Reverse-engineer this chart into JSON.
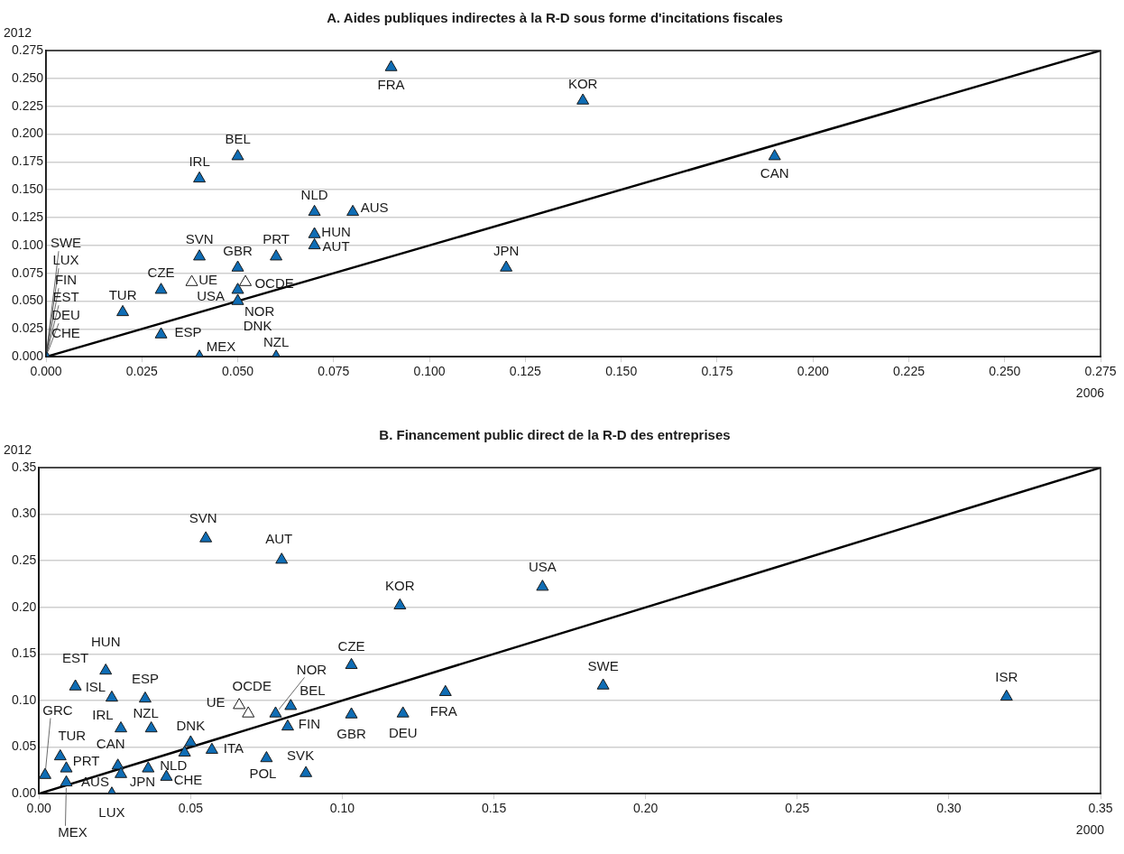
{
  "chart_data": [
    {
      "type": "scatter",
      "title": "A. Aides publiques indirectes à la R-D sous forme d'incitations fiscales",
      "xlabel": "2006",
      "ylabel": "2012",
      "marker": "triangle",
      "grid": "y",
      "xlim": [
        0,
        0.275
      ],
      "ylim": [
        0,
        0.275
      ],
      "xticks": [
        {
          "value": 0,
          "label": "0.000"
        },
        {
          "value": 0.025,
          "label": "0.025"
        },
        {
          "value": 0.05,
          "label": "0.050"
        },
        {
          "value": 0.075,
          "label": "0.075"
        },
        {
          "value": 0.1,
          "label": "0.100"
        },
        {
          "value": 0.125,
          "label": "0.125"
        },
        {
          "value": 0.15,
          "label": "0.150"
        },
        {
          "value": 0.175,
          "label": "0.175"
        },
        {
          "value": 0.2,
          "label": "0.200"
        },
        {
          "value": 0.225,
          "label": "0.225"
        },
        {
          "value": 0.25,
          "label": "0.250"
        },
        {
          "value": 0.275,
          "label": "0.275"
        }
      ],
      "yticks": [
        {
          "value": 0,
          "label": "0.000"
        },
        {
          "value": 0.025,
          "label": "0.025"
        },
        {
          "value": 0.05,
          "label": "0.050"
        },
        {
          "value": 0.075,
          "label": "0.075"
        },
        {
          "value": 0.1,
          "label": "0.100"
        },
        {
          "value": 0.125,
          "label": "0.125"
        },
        {
          "value": 0.15,
          "label": "0.150"
        },
        {
          "value": 0.175,
          "label": "0.175"
        },
        {
          "value": 0.2,
          "label": "0.200"
        },
        {
          "value": 0.225,
          "label": "0.225"
        },
        {
          "value": 0.25,
          "label": "0.250"
        },
        {
          "value": 0.275,
          "label": "0.275"
        }
      ],
      "series": [
        {
          "type": "line",
          "marker": "none",
          "color": "#000000",
          "x": [
            0,
            0.275
          ],
          "values": [
            0,
            0.275
          ]
        },
        {
          "color": "#0f6db5",
          "x": [
            0,
            0.02,
            0.03,
            0.03,
            0.04,
            0.04,
            0.04,
            0.05,
            0.05,
            0.05,
            0.05,
            0.06,
            0.06,
            0.07,
            0.07,
            0.07,
            0.08,
            0.09,
            0.12,
            0.14,
            0.19
          ],
          "values": [
            0,
            0.04,
            0.06,
            0.02,
            0.16,
            0.09,
            0,
            0.18,
            0.08,
            0.06,
            0.05,
            0.09,
            0,
            0.13,
            0.11,
            0.1,
            0.13,
            0.26,
            0.08,
            0.23,
            0.18
          ]
        },
        {
          "color": "#ffffff",
          "x": [
            0.038,
            0.052
          ],
          "values": [
            0.067,
            0.067
          ]
        }
      ],
      "annotations": [
        {
          "text": "SWE",
          "x": 0,
          "y": 0
        },
        {
          "text": "LUX",
          "x": 0,
          "y": 0
        },
        {
          "text": "FIN",
          "x": 0,
          "y": 0
        },
        {
          "text": "EST",
          "x": 0,
          "y": 0
        },
        {
          "text": "DEU",
          "x": 0,
          "y": 0
        },
        {
          "text": "CHE",
          "x": 0,
          "y": 0
        },
        {
          "text": "TUR",
          "x": 0.02,
          "y": 0.04
        },
        {
          "text": "CZE",
          "x": 0.03,
          "y": 0.06
        },
        {
          "text": "ESP",
          "x": 0.03,
          "y": 0.02
        },
        {
          "text": "IRL",
          "x": 0.04,
          "y": 0.16
        },
        {
          "text": "SVN",
          "x": 0.04,
          "y": 0.09
        },
        {
          "text": "MEX",
          "x": 0.04,
          "y": 0
        },
        {
          "text": "BEL",
          "x": 0.05,
          "y": 0.18
        },
        {
          "text": "GBR",
          "x": 0.05,
          "y": 0.08
        },
        {
          "text": "USA",
          "x": 0.05,
          "y": 0.06
        },
        {
          "text": "NOR",
          "x": 0.05,
          "y": 0.05
        },
        {
          "text": "DNK",
          "x": 0.05,
          "y": 0.05
        },
        {
          "text": "PRT",
          "x": 0.06,
          "y": 0.09
        },
        {
          "text": "NZL",
          "x": 0.06,
          "y": 0
        },
        {
          "text": "NLD",
          "x": 0.07,
          "y": 0.13
        },
        {
          "text": "HUN",
          "x": 0.07,
          "y": 0.11
        },
        {
          "text": "AUT",
          "x": 0.07,
          "y": 0.1
        },
        {
          "text": "AUS",
          "x": 0.08,
          "y": 0.13
        },
        {
          "text": "FRA",
          "x": 0.09,
          "y": 0.26
        },
        {
          "text": "JPN",
          "x": 0.12,
          "y": 0.08
        },
        {
          "text": "KOR",
          "x": 0.14,
          "y": 0.23
        },
        {
          "text": "CAN",
          "x": 0.19,
          "y": 0.18
        },
        {
          "text": "UE",
          "x": 0.038,
          "y": 0.067
        },
        {
          "text": "OCDE",
          "x": 0.052,
          "y": 0.067
        }
      ]
    },
    {
      "type": "scatter",
      "title": "B. Financement public direct de la R-D des entreprises",
      "xlabel": "2000",
      "ylabel": "2012",
      "marker": "triangle",
      "grid": "y",
      "xlim": [
        0,
        0.35
      ],
      "ylim": [
        0,
        0.35
      ],
      "xticks": [
        {
          "value": 0,
          "label": "0.00"
        },
        {
          "value": 0.05,
          "label": "0.05"
        },
        {
          "value": 0.1,
          "label": "0.10"
        },
        {
          "value": 0.15,
          "label": "0.15"
        },
        {
          "value": 0.2,
          "label": "0.20"
        },
        {
          "value": 0.25,
          "label": "0.25"
        },
        {
          "value": 0.3,
          "label": "0.30"
        },
        {
          "value": 0.35,
          "label": "0.35"
        }
      ],
      "yticks": [
        {
          "value": 0,
          "label": "0.00"
        },
        {
          "value": 0.05,
          "label": "0.05"
        },
        {
          "value": 0.1,
          "label": "0.10"
        },
        {
          "value": 0.15,
          "label": "0.15"
        },
        {
          "value": 0.2,
          "label": "0.20"
        },
        {
          "value": 0.25,
          "label": "0.25"
        },
        {
          "value": 0.3,
          "label": "0.30"
        },
        {
          "value": 0.35,
          "label": "0.35"
        }
      ],
      "series": [
        {
          "type": "line",
          "marker": "none",
          "color": "#000000",
          "x": [
            0,
            0.35
          ],
          "values": [
            0,
            0.35
          ]
        },
        {
          "color": "#0f6db5",
          "x": [
            0.002,
            0.007,
            0.009,
            0.009,
            0.012,
            0.022,
            0.024,
            0.027,
            0.026,
            0.027,
            0.024,
            0.035,
            0.037,
            0.036,
            0.042,
            0.05,
            0.048,
            0.057,
            0.075,
            0.088,
            0.078,
            0.083,
            0.082,
            0.103,
            0.103,
            0.12,
            0.134,
            0.119,
            0.166,
            0.186,
            0.319,
            0.055,
            0.08
          ],
          "values": [
            0.02,
            0.04,
            0.027,
            0.012,
            0.115,
            0.132,
            0.103,
            0.07,
            0.03,
            0.021,
            0,
            0.102,
            0.07,
            0.027,
            0.018,
            0.055,
            0.044,
            0.047,
            0.038,
            0.022,
            0.086,
            0.094,
            0.072,
            0.138,
            0.085,
            0.086,
            0.109,
            0.202,
            0.222,
            0.116,
            0.104,
            0.274,
            0.251
          ]
        },
        {
          "color": "#ffffff",
          "x": [
            0.066,
            0.069
          ],
          "values": [
            0.095,
            0.086
          ]
        }
      ],
      "annotations": [
        {
          "text": "GRC",
          "x": 0.002,
          "y": 0.02
        },
        {
          "text": "TUR",
          "x": 0.007,
          "y": 0.04
        },
        {
          "text": "PRT",
          "x": 0.009,
          "y": 0.027
        },
        {
          "text": "AUS",
          "x": 0.009,
          "y": 0.012
        },
        {
          "text": "MEX",
          "x": 0.009,
          "y": 0.012
        },
        {
          "text": "EST",
          "x": 0.012,
          "y": 0.115
        },
        {
          "text": "HUN",
          "x": 0.022,
          "y": 0.132
        },
        {
          "text": "ISL",
          "x": 0.024,
          "y": 0.103
        },
        {
          "text": "IRL",
          "x": 0.027,
          "y": 0.07
        },
        {
          "text": "CAN",
          "x": 0.026,
          "y": 0.03
        },
        {
          "text": "JPN",
          "x": 0.027,
          "y": 0.021
        },
        {
          "text": "LUX",
          "x": 0.024,
          "y": 0
        },
        {
          "text": "ESP",
          "x": 0.035,
          "y": 0.102
        },
        {
          "text": "NZL",
          "x": 0.037,
          "y": 0.07
        },
        {
          "text": "NLD",
          "x": 0.036,
          "y": 0.027
        },
        {
          "text": "CHE",
          "x": 0.042,
          "y": 0.018
        },
        {
          "text": "DNK",
          "x": 0.05,
          "y": 0.055
        },
        {
          "text": "ITA",
          "x": 0.057,
          "y": 0.047
        },
        {
          "text": "POL",
          "x": 0.075,
          "y": 0.038
        },
        {
          "text": "SVK",
          "x": 0.088,
          "y": 0.022
        },
        {
          "text": "NOR",
          "x": 0.078,
          "y": 0.086
        },
        {
          "text": "BEL",
          "x": 0.083,
          "y": 0.094
        },
        {
          "text": "FIN",
          "x": 0.082,
          "y": 0.072
        },
        {
          "text": "CZE",
          "x": 0.103,
          "y": 0.138
        },
        {
          "text": "GBR",
          "x": 0.103,
          "y": 0.085
        },
        {
          "text": "DEU",
          "x": 0.12,
          "y": 0.086
        },
        {
          "text": "FRA",
          "x": 0.134,
          "y": 0.109
        },
        {
          "text": "KOR",
          "x": 0.119,
          "y": 0.202
        },
        {
          "text": "USA",
          "x": 0.166,
          "y": 0.222
        },
        {
          "text": "SWE",
          "x": 0.186,
          "y": 0.116
        },
        {
          "text": "ISR",
          "x": 0.319,
          "y": 0.104
        },
        {
          "text": "SVN",
          "x": 0.055,
          "y": 0.274
        },
        {
          "text": "AUT",
          "x": 0.08,
          "y": 0.251
        },
        {
          "text": "UE",
          "x": 0.066,
          "y": 0.095
        },
        {
          "text": "OCDE",
          "x": 0.069,
          "y": 0.086
        }
      ]
    }
  ]
}
